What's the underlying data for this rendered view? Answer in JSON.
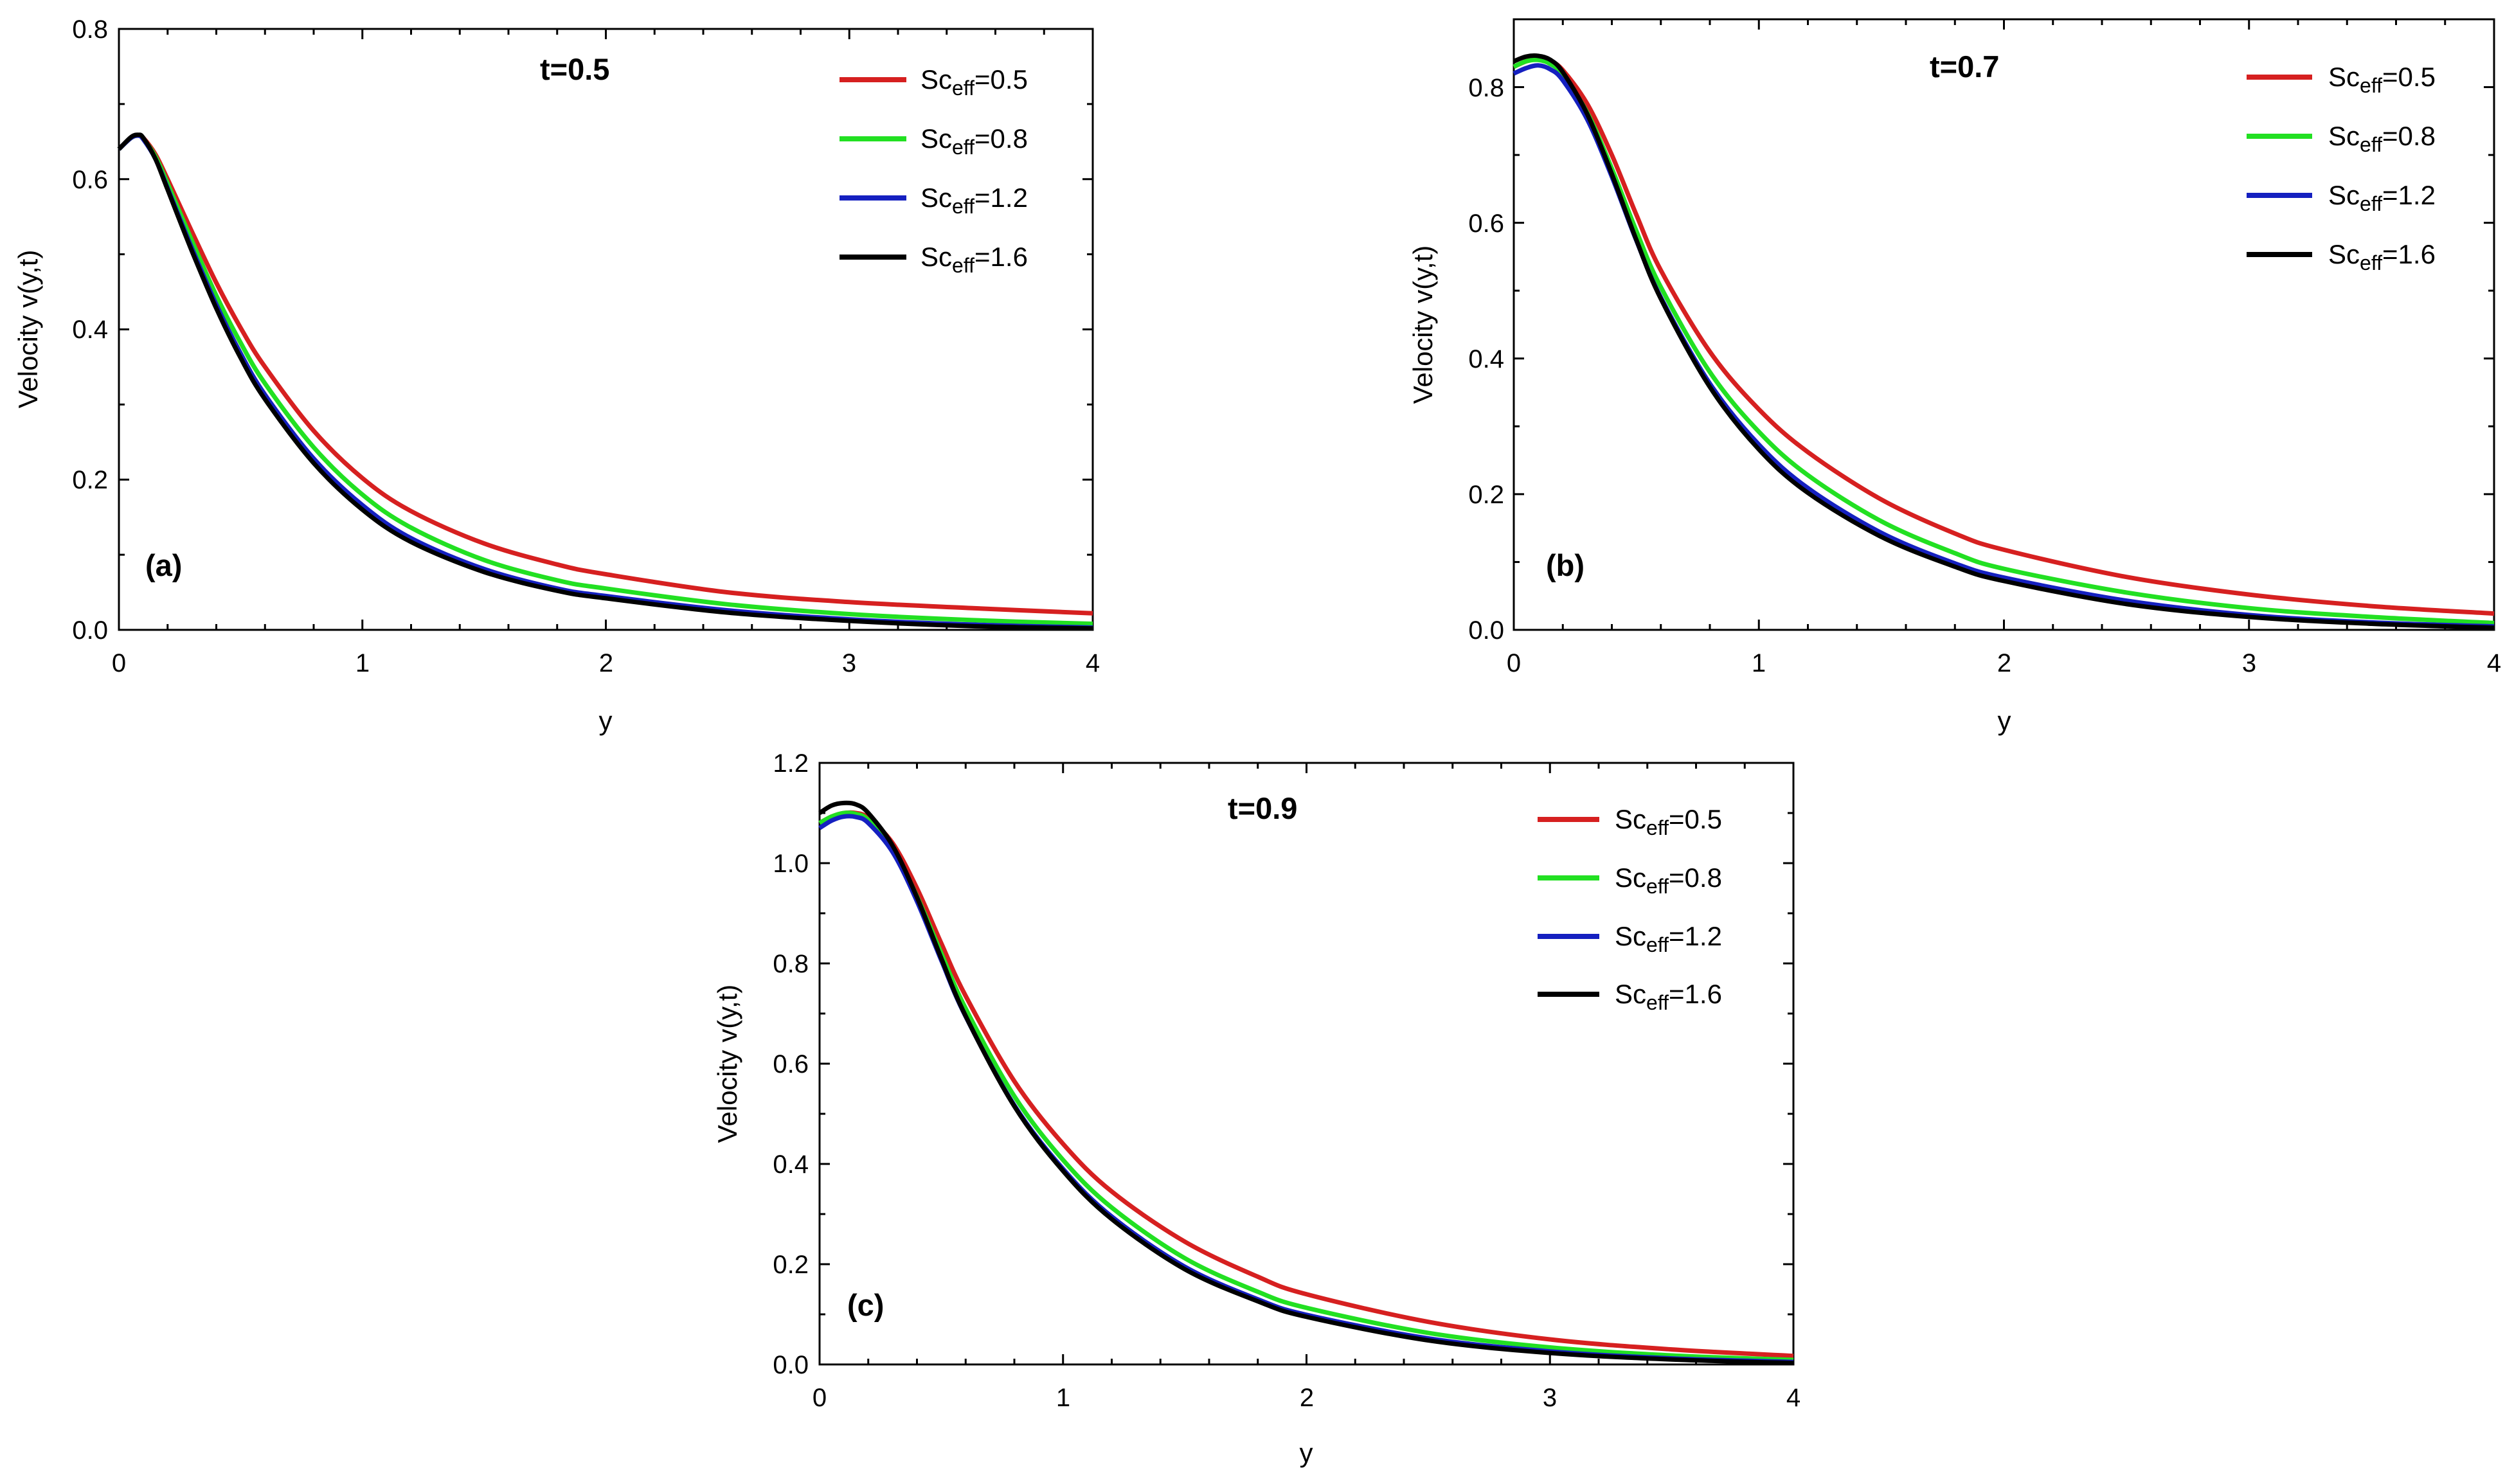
{
  "chart_data": [
    {
      "type": "line",
      "panel_label": "(a)",
      "title": "t=0.5",
      "xlabel": "y",
      "ylabel": "Velocity v(y,t)",
      "xlim": [
        0,
        4
      ],
      "ylim": [
        0,
        0.8
      ],
      "xticks": [
        "0",
        "1",
        "2",
        "3",
        "4"
      ],
      "yticks": [
        "0.0",
        "0.2",
        "0.4",
        "0.6",
        "0.8"
      ],
      "x": [
        0,
        0.05,
        0.08,
        0.1,
        0.15,
        0.2,
        0.3,
        0.4,
        0.5,
        0.6,
        0.8,
        1.0,
        1.2,
        1.5,
        1.8,
        2.0,
        2.5,
        3.0,
        3.5,
        4.0
      ],
      "series": [
        {
          "name": "Sc_eff=0.5",
          "legend_main": "Sc",
          "legend_sub": "eff",
          "legend_value": "=0.5",
          "color": "#d62020",
          "values": [
            0.64,
            0.655,
            0.658,
            0.655,
            0.633,
            0.6,
            0.53,
            0.462,
            0.402,
            0.35,
            0.265,
            0.202,
            0.158,
            0.115,
            0.087,
            0.074,
            0.05,
            0.037,
            0.029,
            0.022
          ]
        },
        {
          "name": "Sc_eff=0.8",
          "legend_main": "Sc",
          "legend_sub": "eff",
          "legend_value": "=0.8",
          "color": "#22e022",
          "values": [
            0.64,
            0.655,
            0.658,
            0.654,
            0.63,
            0.594,
            0.518,
            0.445,
            0.382,
            0.328,
            0.243,
            0.18,
            0.136,
            0.093,
            0.066,
            0.055,
            0.034,
            0.021,
            0.013,
            0.008
          ]
        },
        {
          "name": "Sc_eff=1.2",
          "legend_main": "Sc",
          "legend_sub": "eff",
          "legend_value": "=1.2",
          "color": "#1520c0",
          "values": [
            0.64,
            0.655,
            0.658,
            0.653,
            0.627,
            0.588,
            0.508,
            0.433,
            0.368,
            0.313,
            0.228,
            0.166,
            0.122,
            0.081,
            0.055,
            0.045,
            0.026,
            0.014,
            0.007,
            0.003
          ]
        },
        {
          "name": "Sc_eff=1.6",
          "legend_main": "Sc",
          "legend_sub": "eff",
          "legend_value": "=1.6",
          "color": "#000000",
          "values": [
            0.64,
            0.656,
            0.659,
            0.655,
            0.627,
            0.586,
            0.504,
            0.428,
            0.362,
            0.307,
            0.222,
            0.16,
            0.117,
            0.077,
            0.052,
            0.042,
            0.023,
            0.012,
            0.005,
            0.002
          ]
        }
      ]
    },
    {
      "type": "line",
      "panel_label": "(b)",
      "title": "t=0.7",
      "xlabel": "y",
      "ylabel": "Velocity v(y,t)",
      "xlim": [
        0,
        4
      ],
      "ylim": [
        0,
        0.9
      ],
      "xticks": [
        "0",
        "1",
        "2",
        "3",
        "4"
      ],
      "yticks": [
        "0.0",
        "0.2",
        "0.4",
        "0.6",
        "0.8"
      ],
      "x": [
        0,
        0.05,
        0.1,
        0.15,
        0.2,
        0.3,
        0.4,
        0.5,
        0.6,
        0.8,
        1.0,
        1.2,
        1.5,
        1.8,
        2.0,
        2.5,
        3.0,
        3.5,
        4.0
      ],
      "series": [
        {
          "name": "Sc_eff=0.5",
          "legend_main": "Sc",
          "legend_sub": "eff",
          "legend_value": "=0.5",
          "color": "#d62020",
          "values": [
            0.83,
            0.838,
            0.842,
            0.838,
            0.825,
            0.775,
            0.7,
            0.612,
            0.53,
            0.41,
            0.325,
            0.262,
            0.192,
            0.142,
            0.118,
            0.078,
            0.052,
            0.035,
            0.024
          ]
        },
        {
          "name": "Sc_eff=0.8",
          "legend_main": "Sc",
          "legend_sub": "eff",
          "legend_value": "=0.8",
          "color": "#22e022",
          "values": [
            0.83,
            0.838,
            0.84,
            0.834,
            0.818,
            0.762,
            0.68,
            0.588,
            0.505,
            0.38,
            0.292,
            0.228,
            0.16,
            0.113,
            0.09,
            0.055,
            0.032,
            0.019,
            0.01
          ]
        },
        {
          "name": "Sc_eff=1.2",
          "legend_main": "Sc",
          "legend_sub": "eff",
          "legend_value": "=1.2",
          "color": "#1520c0",
          "values": [
            0.82,
            0.828,
            0.832,
            0.826,
            0.81,
            0.752,
            0.668,
            0.574,
            0.49,
            0.363,
            0.273,
            0.209,
            0.143,
            0.098,
            0.077,
            0.043,
            0.022,
            0.011,
            0.005
          ]
        },
        {
          "name": "Sc_eff=1.6",
          "legend_main": "Sc",
          "legend_sub": "eff",
          "legend_value": "=1.6",
          "color": "#000000",
          "values": [
            0.838,
            0.845,
            0.846,
            0.84,
            0.822,
            0.76,
            0.672,
            0.575,
            0.488,
            0.358,
            0.266,
            0.202,
            0.137,
            0.093,
            0.072,
            0.038,
            0.019,
            0.009,
            0.003
          ]
        }
      ]
    },
    {
      "type": "line",
      "panel_label": "(c)",
      "title": "t=0.9",
      "xlabel": "y",
      "ylabel": "Velocity v(y,t)",
      "xlim": [
        0,
        4
      ],
      "ylim": [
        0,
        1.2
      ],
      "xticks": [
        "0",
        "1",
        "2",
        "3",
        "4"
      ],
      "yticks": [
        "0.0",
        "0.2",
        "0.4",
        "0.6",
        "0.8",
        "1.0",
        "1.2"
      ],
      "x": [
        0,
        0.05,
        0.1,
        0.15,
        0.2,
        0.3,
        0.4,
        0.5,
        0.6,
        0.8,
        1.0,
        1.2,
        1.5,
        1.8,
        2.0,
        2.5,
        3.0,
        3.5,
        4.0
      ],
      "series": [
        {
          "name": "Sc_eff=0.5",
          "legend_main": "Sc",
          "legend_sub": "eff",
          "legend_value": "=0.5",
          "color": "#d62020",
          "values": [
            1.08,
            1.093,
            1.1,
            1.1,
            1.09,
            1.04,
            0.95,
            0.84,
            0.735,
            0.565,
            0.44,
            0.345,
            0.245,
            0.175,
            0.14,
            0.085,
            0.05,
            0.03,
            0.017
          ]
        },
        {
          "name": "Sc_eff=0.8",
          "legend_main": "Sc",
          "legend_sub": "eff",
          "legend_value": "=0.8",
          "color": "#22e022",
          "values": [
            1.08,
            1.093,
            1.1,
            1.098,
            1.086,
            1.03,
            0.934,
            0.82,
            0.71,
            0.535,
            0.408,
            0.313,
            0.212,
            0.145,
            0.113,
            0.063,
            0.034,
            0.018,
            0.009
          ]
        },
        {
          "name": "Sc_eff=1.2",
          "legend_main": "Sc",
          "legend_sub": "eff",
          "legend_value": "=1.2",
          "color": "#1520c0",
          "values": [
            1.07,
            1.085,
            1.093,
            1.092,
            1.08,
            1.022,
            0.924,
            0.806,
            0.694,
            0.517,
            0.39,
            0.295,
            0.195,
            0.13,
            0.099,
            0.052,
            0.026,
            0.012,
            0.005
          ]
        },
        {
          "name": "Sc_eff=1.6",
          "legend_main": "Sc",
          "legend_sub": "eff",
          "legend_value": "=1.6",
          "color": "#000000",
          "values": [
            1.1,
            1.115,
            1.12,
            1.117,
            1.1,
            1.035,
            0.932,
            0.81,
            0.695,
            0.515,
            0.386,
            0.29,
            0.19,
            0.126,
            0.095,
            0.048,
            0.023,
            0.01,
            0.003
          ]
        }
      ]
    }
  ]
}
